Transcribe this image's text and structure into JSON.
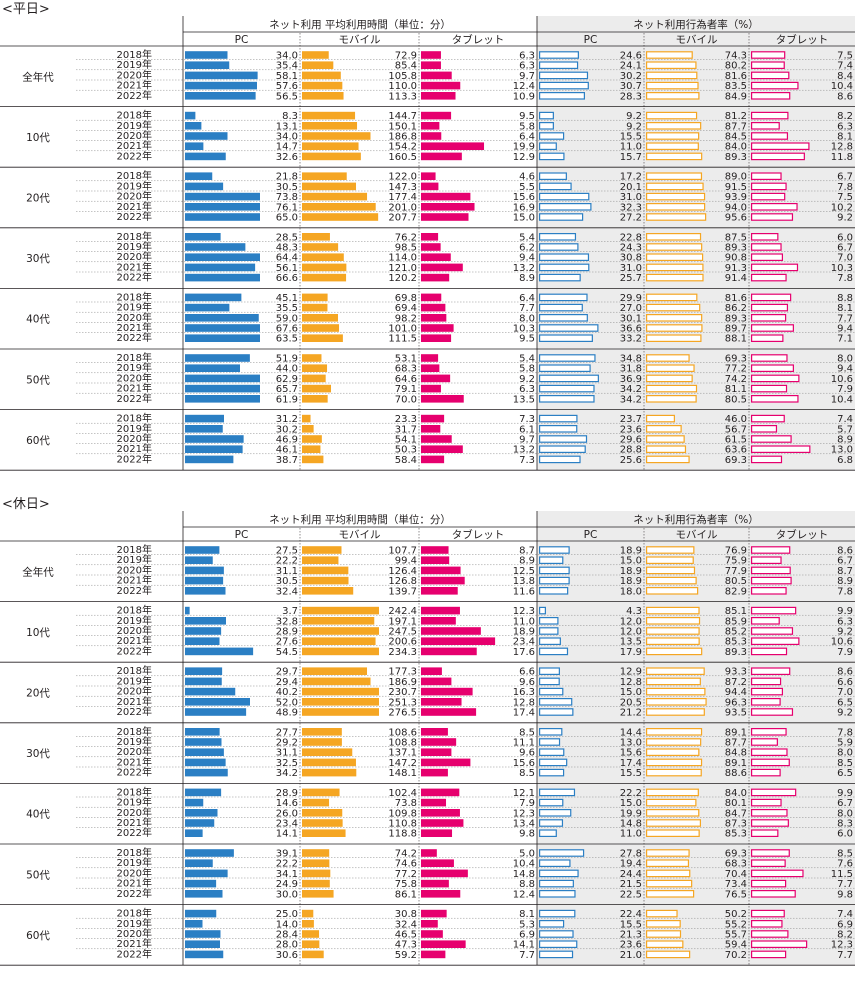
{
  "chart_data": {
    "type": "bar",
    "row_labels": [
      "2018年",
      "2019年",
      "2020年",
      "2021年",
      "2022年"
    ],
    "groups": [
      "全年代",
      "10代",
      "20代",
      "30代",
      "40代",
      "50代",
      "60代"
    ],
    "headers": {
      "time": "ネット利用 平均利用時間（単位：分）",
      "rate": "ネット利用行為者率（%）"
    },
    "devices": [
      "PC",
      "モバイル",
      "タブレット"
    ],
    "colors": {
      "pc": "#2b7fc4",
      "mobile": "#f5a623",
      "tablet": "#e6006e",
      "rate_bg": "#ececec"
    },
    "scales": {
      "time_max": [
        60,
        210,
        24
      ],
      "rate_max": [
        40,
        100,
        14
      ]
    },
    "sections": [
      {
        "title": "<平日>",
        "data": {
          "全年代": [
            [
              34.0,
              72.9,
              6.3,
              24.6,
              74.3,
              7.5
            ],
            [
              35.4,
              85.4,
              6.3,
              24.1,
              80.2,
              7.4
            ],
            [
              58.1,
              105.8,
              9.7,
              30.2,
              81.6,
              8.4
            ],
            [
              57.6,
              110.0,
              12.4,
              30.7,
              83.5,
              10.4
            ],
            [
              56.5,
              113.3,
              10.9,
              28.3,
              84.9,
              8.6
            ]
          ],
          "10代": [
            [
              8.3,
              144.7,
              9.5,
              9.2,
              81.2,
              8.2
            ],
            [
              13.1,
              150.1,
              5.8,
              9.2,
              87.7,
              6.3
            ],
            [
              34.0,
              186.8,
              6.4,
              15.5,
              84.5,
              8.1
            ],
            [
              14.7,
              154.2,
              19.9,
              11.0,
              84.0,
              12.8
            ],
            [
              32.6,
              160.5,
              12.9,
              15.7,
              89.3,
              11.8
            ]
          ],
          "20代": [
            [
              21.8,
              122.0,
              4.6,
              17.2,
              89.0,
              6.7
            ],
            [
              30.5,
              147.3,
              5.5,
              20.1,
              91.5,
              7.8
            ],
            [
              73.8,
              177.4,
              15.6,
              31.0,
              93.9,
              7.5
            ],
            [
              76.1,
              201.0,
              16.9,
              32.3,
              94.0,
              10.2
            ],
            [
              65.0,
              207.7,
              15.0,
              27.2,
              95.6,
              9.2
            ]
          ],
          "30代": [
            [
              28.5,
              76.2,
              5.4,
              22.8,
              87.5,
              6.0
            ],
            [
              48.3,
              98.5,
              6.2,
              24.3,
              89.3,
              6.7
            ],
            [
              64.4,
              114.0,
              9.4,
              30.8,
              90.8,
              7.0
            ],
            [
              56.1,
              121.0,
              13.2,
              31.0,
              91.3,
              10.3
            ],
            [
              66.6,
              120.2,
              8.9,
              25.7,
              91.4,
              7.8
            ]
          ],
          "40代": [
            [
              45.1,
              69.8,
              6.4,
              29.9,
              81.6,
              8.8
            ],
            [
              35.5,
              69.4,
              7.7,
              27.0,
              86.2,
              8.1
            ],
            [
              59.0,
              98.2,
              8.0,
              30.1,
              89.3,
              7.7
            ],
            [
              67.6,
              101.0,
              10.3,
              36.6,
              89.7,
              9.4
            ],
            [
              63.5,
              111.5,
              9.5,
              33.2,
              88.1,
              7.1
            ]
          ],
          "50代": [
            [
              51.9,
              53.1,
              5.4,
              34.8,
              69.3,
              8.0
            ],
            [
              44.0,
              68.3,
              5.8,
              31.8,
              77.2,
              9.4
            ],
            [
              62.9,
              64.6,
              9.2,
              36.9,
              74.2,
              10.6
            ],
            [
              65.7,
              79.1,
              6.3,
              34.2,
              81.1,
              7.9
            ],
            [
              61.9,
              70.0,
              13.5,
              34.2,
              80.5,
              10.4
            ]
          ],
          "60代": [
            [
              31.2,
              23.3,
              7.3,
              23.7,
              46.0,
              7.4
            ],
            [
              30.2,
              31.7,
              6.1,
              23.6,
              56.7,
              5.7
            ],
            [
              46.9,
              54.1,
              9.7,
              29.6,
              61.5,
              8.9
            ],
            [
              46.1,
              50.3,
              13.2,
              28.8,
              63.6,
              13.0
            ],
            [
              38.7,
              58.4,
              7.3,
              25.6,
              69.3,
              6.8
            ]
          ]
        }
      },
      {
        "title": "<休日>",
        "data": {
          "全年代": [
            [
              27.5,
              107.7,
              8.7,
              18.9,
              76.9,
              8.6
            ],
            [
              22.2,
              99.4,
              8.9,
              15.0,
              75.9,
              6.7
            ],
            [
              31.1,
              126.4,
              12.5,
              18.9,
              77.9,
              8.7
            ],
            [
              30.5,
              126.8,
              13.8,
              18.9,
              80.5,
              8.9
            ],
            [
              32.4,
              139.7,
              11.6,
              18.0,
              82.9,
              7.8
            ]
          ],
          "10代": [
            [
              3.7,
              242.4,
              12.3,
              4.3,
              85.1,
              9.9
            ],
            [
              32.8,
              197.1,
              11.0,
              12.0,
              85.9,
              6.3
            ],
            [
              28.9,
              247.5,
              18.9,
              12.0,
              85.2,
              9.2
            ],
            [
              27.6,
              200.6,
              23.4,
              13.5,
              85.3,
              10.6
            ],
            [
              54.5,
              234.3,
              17.6,
              17.9,
              89.3,
              7.9
            ]
          ],
          "20代": [
            [
              29.7,
              177.3,
              6.6,
              12.9,
              93.3,
              8.6
            ],
            [
              29.4,
              186.9,
              9.6,
              12.8,
              87.2,
              6.6
            ],
            [
              40.2,
              230.7,
              16.3,
              15.0,
              94.4,
              7.0
            ],
            [
              52.0,
              251.3,
              12.8,
              20.5,
              96.3,
              6.5
            ],
            [
              48.9,
              276.5,
              17.4,
              21.2,
              93.5,
              9.2
            ]
          ],
          "30代": [
            [
              27.7,
              108.6,
              8.5,
              14.4,
              89.1,
              7.8
            ],
            [
              29.2,
              108.8,
              11.1,
              13.0,
              87.7,
              5.9
            ],
            [
              31.1,
              137.1,
              9.6,
              15.6,
              84.8,
              8.0
            ],
            [
              32.5,
              147.2,
              15.6,
              17.4,
              89.1,
              8.5
            ],
            [
              34.2,
              148.1,
              8.5,
              15.5,
              88.6,
              6.5
            ]
          ],
          "40代": [
            [
              28.9,
              102.4,
              12.1,
              22.2,
              84.0,
              9.9
            ],
            [
              14.6,
              73.8,
              7.9,
              15.0,
              80.1,
              6.7
            ],
            [
              26.0,
              109.8,
              12.3,
              19.9,
              84.7,
              8.0
            ],
            [
              23.4,
              110.8,
              13.4,
              14.8,
              87.3,
              8.3
            ],
            [
              14.1,
              118.8,
              9.8,
              11.0,
              85.3,
              6.0
            ]
          ],
          "50代": [
            [
              39.1,
              74.2,
              5.0,
              27.8,
              69.3,
              8.5
            ],
            [
              22.2,
              74.6,
              10.4,
              19.4,
              68.3,
              7.6
            ],
            [
              34.1,
              77.2,
              14.8,
              24.4,
              70.4,
              11.5
            ],
            [
              24.9,
              75.8,
              8.8,
              21.5,
              73.4,
              7.7
            ],
            [
              30.0,
              86.1,
              12.4,
              22.5,
              76.5,
              9.8
            ]
          ],
          "60代": [
            [
              25.0,
              30.8,
              8.1,
              22.4,
              50.2,
              7.4
            ],
            [
              14.0,
              32.4,
              5.3,
              15.5,
              55.2,
              6.9
            ],
            [
              28.4,
              46.5,
              6.9,
              21.3,
              55.7,
              8.2
            ],
            [
              28.0,
              47.3,
              14.1,
              23.6,
              59.4,
              12.3
            ],
            [
              30.6,
              59.2,
              7.7,
              21.0,
              70.2,
              7.7
            ]
          ]
        }
      }
    ]
  }
}
